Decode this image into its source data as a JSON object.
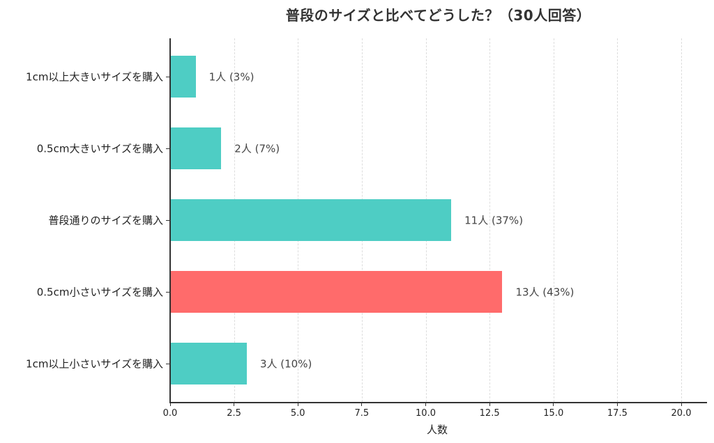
{
  "chart_data": {
    "type": "bar",
    "orientation": "horizontal",
    "title": "普段のサイズと比べてどうした？（30人回答）",
    "xlabel": "人数",
    "ylabel": "",
    "xlim": [
      0,
      21
    ],
    "grid": "x, dashed",
    "legend": null,
    "categories": [
      "1cm以上大きいサイズを購入",
      "0.5cm大きいサイズを購入",
      "普段通りのサイズを購入",
      "0.5cm小さいサイズを購入",
      "1cm以上小さいサイズを購入"
    ],
    "values": [
      1,
      2,
      11,
      13,
      3
    ],
    "percentages": [
      3,
      7,
      37,
      43,
      10
    ],
    "data_labels": [
      "1人 (3%)",
      "2人 (7%)",
      "11人 (37%)",
      "13人 (43%)",
      "3人 (10%)"
    ],
    "colors": [
      "#4ECDC4",
      "#4ECDC4",
      "#4ECDC4",
      "#FF6B6B",
      "#4ECDC4"
    ],
    "x_ticks": [
      "0.0",
      "2.5",
      "5.0",
      "7.5",
      "10.0",
      "12.5",
      "15.0",
      "17.5",
      "20.0"
    ],
    "x_tick_values": [
      0,
      2.5,
      5,
      7.5,
      10,
      12.5,
      15,
      17.5,
      20
    ]
  }
}
